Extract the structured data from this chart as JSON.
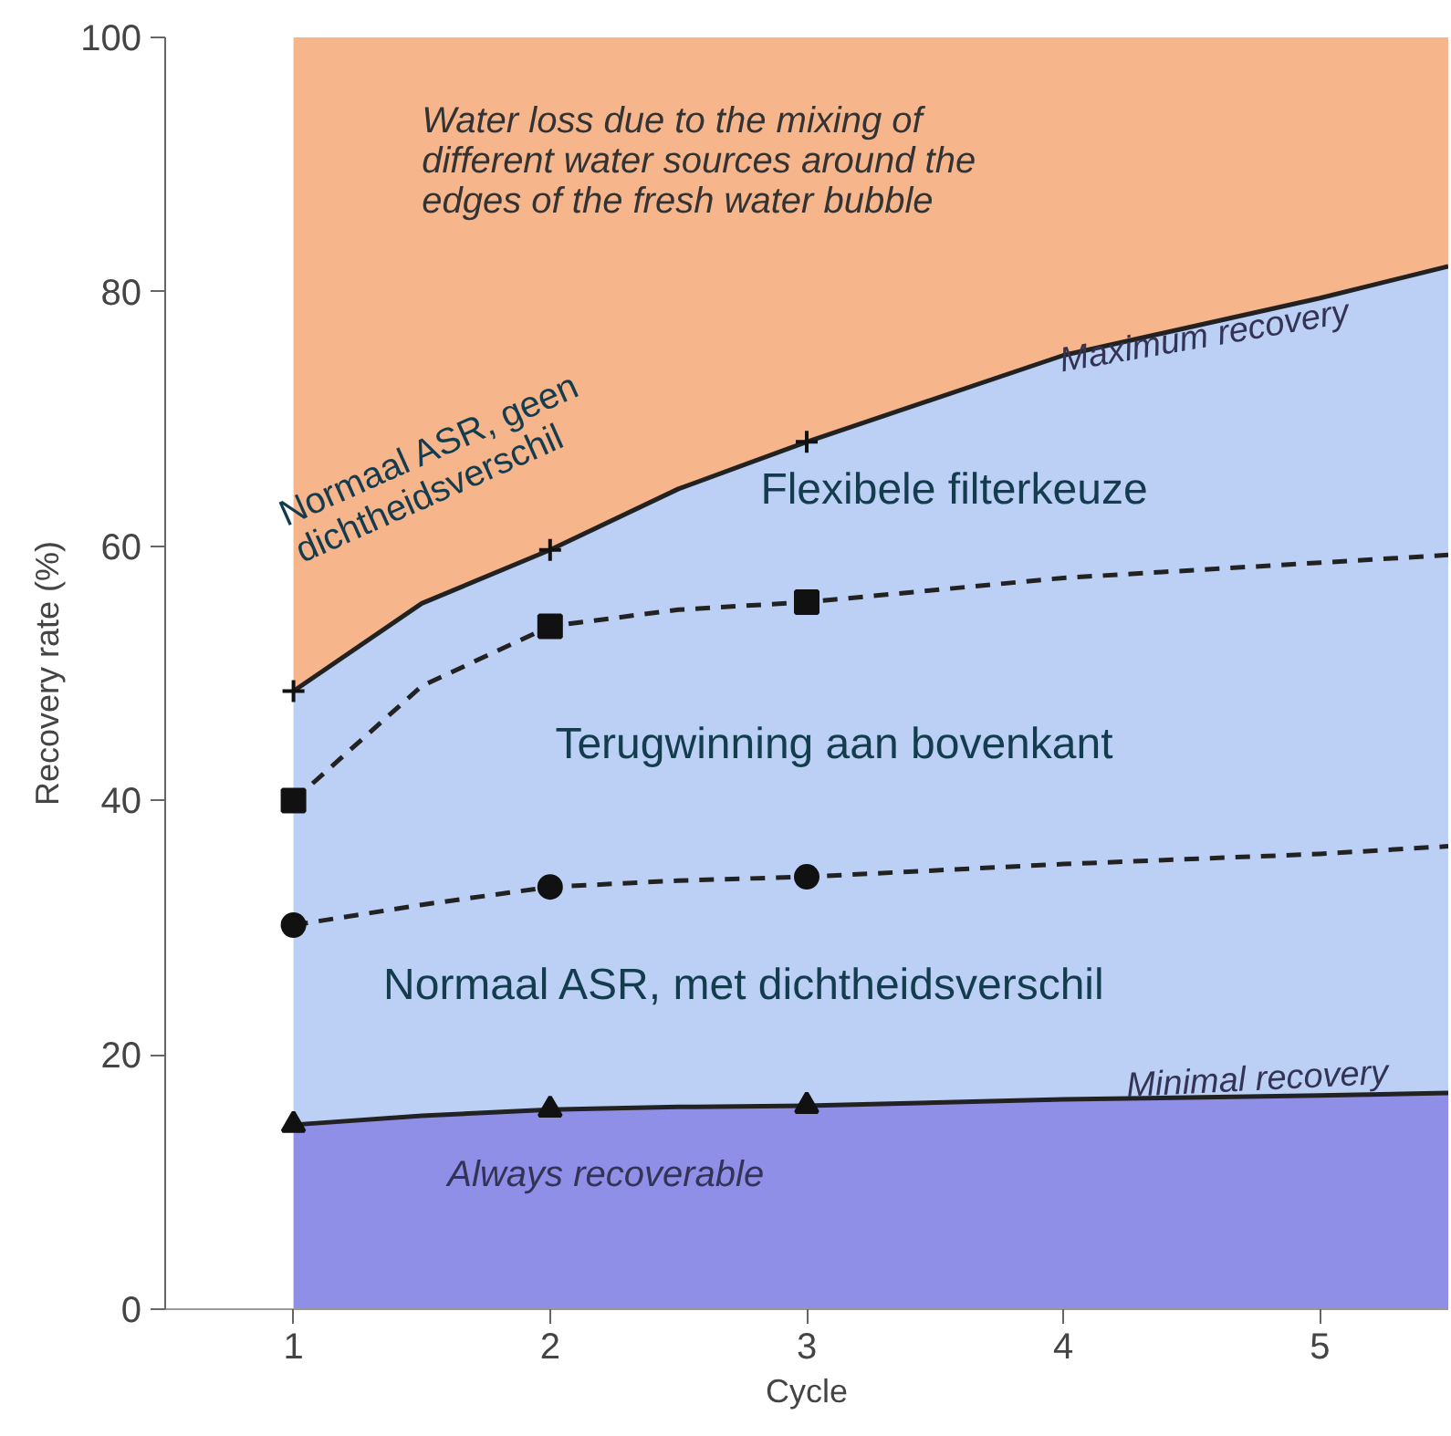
{
  "chart_data": {
    "type": "area",
    "stacked": true,
    "xlabel": "Cycle",
    "ylabel": "Recovery rate (%)",
    "xlim": [
      0.5,
      5.5
    ],
    "ylim": [
      0,
      100
    ],
    "xticks": [
      1,
      2,
      3,
      4,
      5
    ],
    "yticks": [
      0,
      20,
      40,
      60,
      80,
      100
    ],
    "grid": false,
    "series": [
      {
        "color": "#8f8fe8",
        "line_style": "solid",
        "x": [
          1,
          1.5,
          2,
          2.5,
          3,
          4,
          5,
          5.5
        ],
        "values": [
          14.5,
          15.2,
          15.7,
          15.9,
          16.0,
          16.5,
          16.8,
          17.0
        ]
      },
      {
        "color": "#bcd0f5",
        "line_style": "solid",
        "x": [
          1,
          1.5,
          2,
          2.5,
          3,
          4,
          5,
          5.5
        ],
        "values": [
          34.1,
          40.3,
          44.0,
          48.6,
          52.2,
          58.5,
          62.7,
          65.0
        ]
      },
      {
        "color": "#f7b58c",
        "x": [
          1,
          1.5,
          2,
          2.5,
          3,
          4,
          5,
          5.5
        ],
        "values": [
          51.4,
          44.5,
          40.3,
          35.5,
          31.8,
          25.0,
          20.5,
          18.0
        ]
      },
      {
        "type": "line",
        "color": "#222222",
        "line_style": "dashed",
        "marker": "none",
        "x": [
          1,
          1.5,
          2,
          2.5,
          3,
          4,
          5,
          5.5
        ],
        "values": [
          40.0,
          49.0,
          53.7,
          55.0,
          55.6,
          57.5,
          58.7,
          59.3
        ]
      },
      {
        "type": "line",
        "color": "#222222",
        "line_style": "dashed",
        "marker": "none",
        "x": [
          1,
          1.5,
          2,
          2.5,
          3,
          4,
          5,
          5.5
        ],
        "values": [
          30.2,
          31.8,
          33.2,
          33.7,
          34.0,
          35.0,
          35.8,
          36.4
        ]
      },
      {
        "type": "scatter",
        "color": "#111111",
        "marker": "cross",
        "x": [
          1,
          2,
          3
        ],
        "values": [
          48.6,
          59.7,
          68.2
        ]
      },
      {
        "type": "scatter",
        "color": "#111111",
        "marker": "square",
        "x": [
          1,
          2,
          3
        ],
        "values": [
          40.0,
          53.7,
          55.6
        ]
      },
      {
        "type": "scatter",
        "color": "#111111",
        "marker": "circle",
        "x": [
          1,
          2,
          3
        ],
        "values": [
          30.2,
          33.2,
          34.0
        ]
      },
      {
        "type": "scatter",
        "color": "#111111",
        "marker": "triangle",
        "x": [
          1,
          2,
          3
        ],
        "values": [
          14.5,
          15.7,
          16.0
        ]
      }
    ],
    "annotations": [
      "Water loss due to the mixing of\ndifferent water sources around the\nedges of the fresh water bubble",
      "Maximum recovery",
      "Normaal ASR, geen\ndichtheidsverschil",
      "Flexibele filterkeuze",
      "Terugwinning aan bovenkant",
      "Normaal ASR, met dichtheidsverschil",
      "Minimal recovery",
      "Always recoverable"
    ]
  }
}
